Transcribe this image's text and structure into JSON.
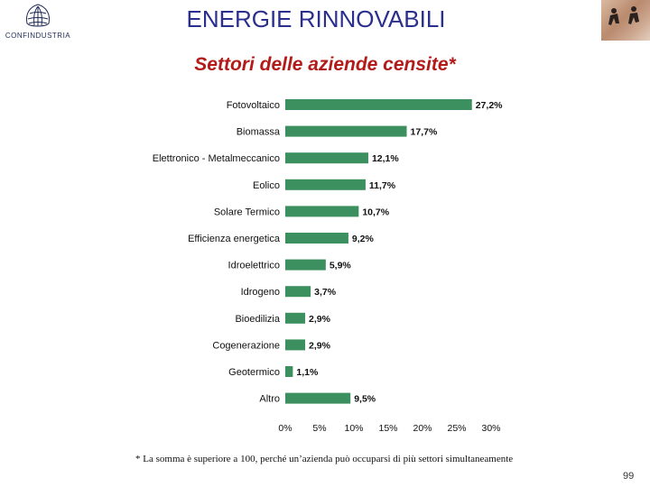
{
  "header": {
    "logo_text": "CONFINDUSTRIA",
    "title": "ENERGIE RINNOVABILI",
    "subtitle": "Settori delle aziende censite*"
  },
  "chart_data": {
    "type": "bar",
    "orientation": "horizontal",
    "categories": [
      "Fotovoltaico",
      "Biomassa",
      "Elettronico - Metalmeccanico",
      "Eolico",
      "Solare Termico",
      "Efficienza energetica",
      "Idroelettrico",
      "Idrogeno",
      "Bioedilizia",
      "Cogenerazione",
      "Geotermico",
      "Altro"
    ],
    "values": [
      27.2,
      17.7,
      12.1,
      11.7,
      10.7,
      9.2,
      5.9,
      3.7,
      2.9,
      2.9,
      1.1,
      9.5
    ],
    "value_labels": [
      "27,2%",
      "17,7%",
      "12,1%",
      "11,7%",
      "10,7%",
      "9,2%",
      "5,9%",
      "3,7%",
      "2,9%",
      "2,9%",
      "1,1%",
      "9,5%"
    ],
    "xlim": [
      0,
      30
    ],
    "xticks": [
      0,
      5,
      10,
      15,
      20,
      25,
      30
    ],
    "xtick_labels": [
      "0%",
      "5%",
      "10%",
      "15%",
      "20%",
      "25%",
      "30%"
    ],
    "bar_color": "#3c8f5e",
    "grid": false,
    "legend": "none"
  },
  "footnote": "* La somma è superiore a 100, perché un’azienda può occuparsi di più settori simultaneamente",
  "page_number": "99"
}
